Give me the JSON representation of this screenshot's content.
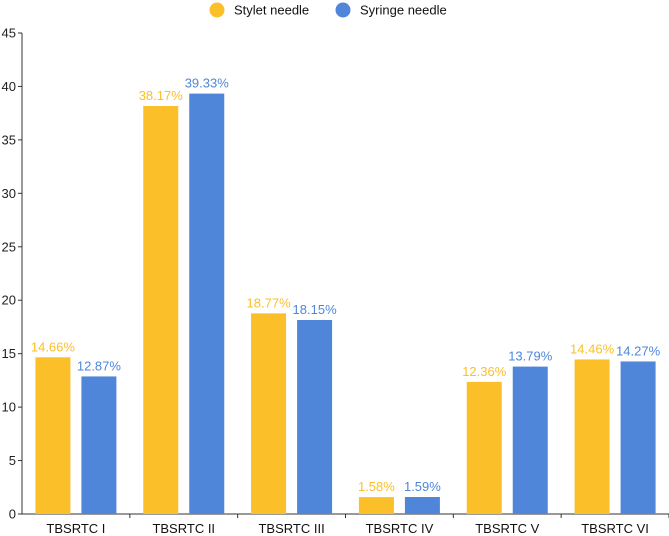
{
  "chart_data": {
    "type": "bar",
    "title": "",
    "xlabel": "",
    "ylabel": "",
    "ylim": [
      0,
      45
    ],
    "yticks": [
      0,
      5,
      10,
      15,
      20,
      25,
      30,
      35,
      40,
      45
    ],
    "grid": false,
    "legend_position": "top-center",
    "categories": [
      "TBSRTC I",
      "TBSRTC II",
      "TBSRTC III",
      "TBSRTC IV",
      "TBSRTC V",
      "TBSRTC VI"
    ],
    "series": [
      {
        "name": "Stylet needle",
        "color": "#FBBF2A",
        "values": [
          14.66,
          38.17,
          18.77,
          1.58,
          12.36,
          14.46
        ],
        "labels": [
          "14.66%",
          "38.17%",
          "18.77%",
          "1.58%",
          "12.36%",
          "14.46%"
        ]
      },
      {
        "name": "Syringe needle",
        "color": "#4F86DA",
        "values": [
          12.87,
          39.33,
          18.15,
          1.59,
          13.79,
          14.27
        ],
        "labels": [
          "12.87%",
          "39.33%",
          "18.15%",
          "1.59%",
          "13.79%",
          "14.27%"
        ]
      }
    ]
  }
}
